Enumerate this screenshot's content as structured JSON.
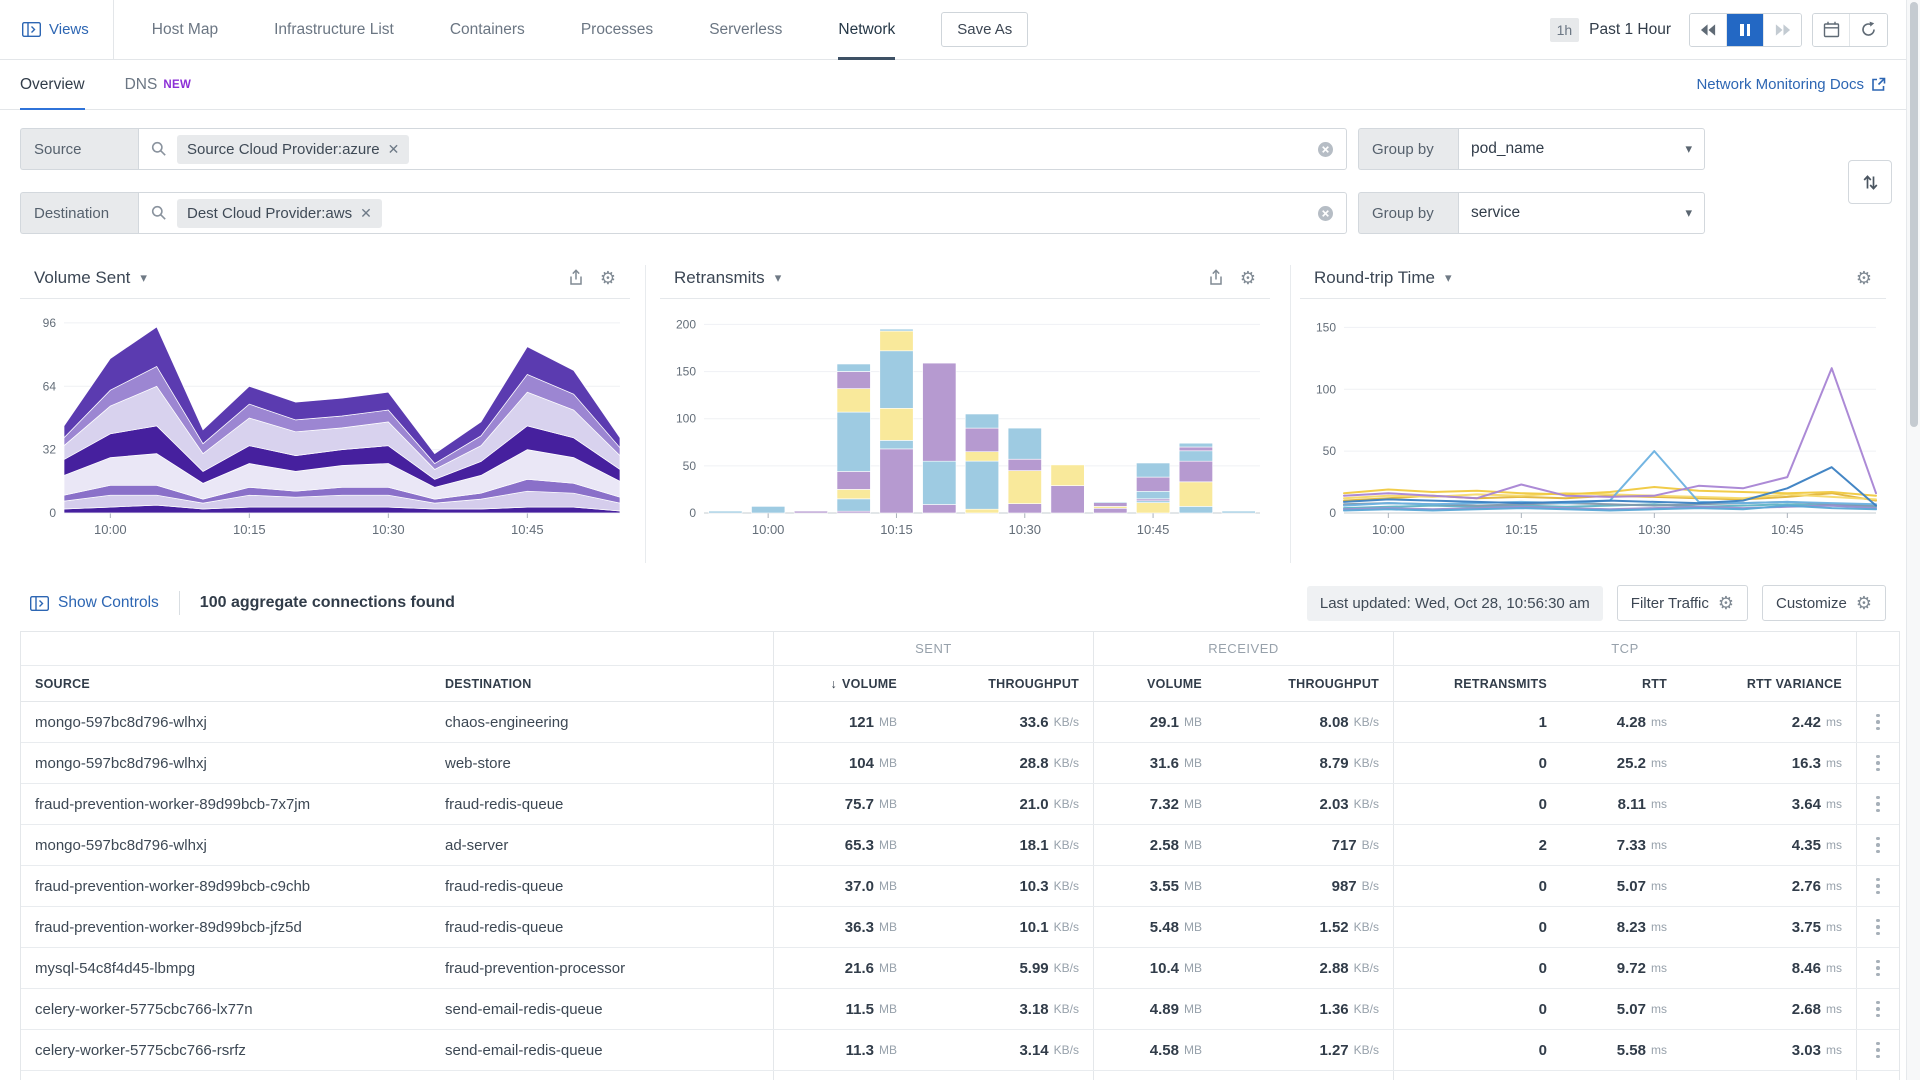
{
  "topnav": {
    "views_label": "Views",
    "items": [
      "Host Map",
      "Infrastructure List",
      "Containers",
      "Processes",
      "Serverless"
    ],
    "active_item": "Network",
    "save_as_label": "Save As",
    "time_range_badge": "1h",
    "time_range_label": "Past 1 Hour"
  },
  "tabs": {
    "overview": "Overview",
    "dns": "DNS",
    "dns_badge": "NEW",
    "docs_link": "Network Monitoring Docs"
  },
  "filters": {
    "source": {
      "label": "Source",
      "pill": "Source Cloud Provider:azure",
      "group_by_label": "Group by",
      "group_by_value": "pod_name"
    },
    "destination": {
      "label": "Destination",
      "pill": "Dest Cloud Provider:aws",
      "group_by_label": "Group by",
      "group_by_value": "service"
    }
  },
  "controls": {
    "show_controls": "Show Controls",
    "connections_found": "100 aggregate connections found",
    "last_updated": "Last updated: Wed, Oct 28, 10:56:30 am",
    "filter_traffic": "Filter Traffic",
    "customize": "Customize"
  },
  "chart_data": [
    {
      "type": "area",
      "title": "Volume Sent",
      "x": [
        "09:57",
        "10:00",
        "10:05",
        "10:10",
        "10:15",
        "10:20",
        "10:25",
        "10:30",
        "10:35",
        "10:40",
        "10:45",
        "10:50",
        "10:55"
      ],
      "x_ticks": [
        {
          "index": 1,
          "label": "10:00"
        },
        {
          "index": 4,
          "label": "10:15"
        },
        {
          "index": 7,
          "label": "10:30"
        },
        {
          "index": 10,
          "label": "10:45"
        }
      ],
      "ylim": [
        0,
        100
      ],
      "yticks": [
        0,
        32,
        64,
        96
      ],
      "stacked": true,
      "series": [
        {
          "name": "series-1",
          "color": "#46209e",
          "values": [
            2,
            3,
            4,
            2,
            3,
            3,
            3,
            3,
            2,
            2,
            3,
            3,
            1
          ]
        },
        {
          "name": "series-2",
          "color": "#d5cdec",
          "values": [
            4,
            6,
            5,
            3,
            6,
            5,
            6,
            6,
            3,
            5,
            8,
            7,
            4
          ]
        },
        {
          "name": "series-3",
          "color": "#8a70c9",
          "values": [
            3,
            5,
            5,
            2,
            4,
            3,
            4,
            4,
            2,
            3,
            6,
            5,
            3
          ]
        },
        {
          "name": "series-4",
          "color": "#eae7f6",
          "values": [
            10,
            14,
            16,
            8,
            12,
            10,
            11,
            12,
            6,
            9,
            15,
            13,
            8
          ]
        },
        {
          "name": "series-5",
          "color": "#46209e",
          "values": [
            8,
            12,
            14,
            6,
            9,
            8,
            8,
            9,
            4,
            7,
            12,
            10,
            6
          ]
        },
        {
          "name": "series-6",
          "color": "#d8d2ee",
          "values": [
            7,
            14,
            20,
            9,
            14,
            12,
            11,
            12,
            5,
            8,
            17,
            14,
            7
          ]
        },
        {
          "name": "series-7",
          "color": "#9c86d2",
          "values": [
            4,
            8,
            10,
            5,
            7,
            6,
            6,
            6,
            3,
            5,
            9,
            8,
            4
          ]
        },
        {
          "name": "series-8",
          "color": "#5b3bb0",
          "values": [
            6,
            16,
            20,
            7,
            9,
            9,
            9,
            9,
            5,
            7,
            14,
            12,
            5
          ]
        }
      ]
    },
    {
      "type": "bar",
      "title": "Retransmits",
      "x": [
        "09:57",
        "10:00",
        "10:05",
        "10:10",
        "10:15",
        "10:20",
        "10:25",
        "10:30",
        "10:35",
        "10:40",
        "10:45",
        "10:50",
        "10:55"
      ],
      "x_ticks": [
        {
          "index": 1,
          "label": "10:00"
        },
        {
          "index": 4,
          "label": "10:15"
        },
        {
          "index": 7,
          "label": "10:30"
        },
        {
          "index": 10,
          "label": "10:45"
        }
      ],
      "ylim": [
        0,
        210
      ],
      "yticks": [
        0,
        50,
        100,
        150,
        200
      ],
      "stacked": true,
      "colors": {
        "blue": "#9ecbe2",
        "yellow": "#f9e99b",
        "purple": "#b69ad0"
      },
      "bars": [
        [
          [
            "blue",
            2
          ]
        ],
        [
          [
            "blue",
            7
          ]
        ],
        [
          [
            "purple",
            2
          ]
        ],
        [
          [
            "purple",
            2
          ],
          [
            "blue",
            13
          ],
          [
            "yellow",
            10
          ],
          [
            "purple",
            19
          ],
          [
            "blue",
            63
          ],
          [
            "yellow",
            25
          ],
          [
            "purple",
            18
          ],
          [
            "blue",
            8
          ]
        ],
        [
          [
            "purple",
            68
          ],
          [
            "blue",
            9
          ],
          [
            "yellow",
            34
          ],
          [
            "blue",
            61
          ],
          [
            "yellow",
            21
          ],
          [
            "blue",
            2
          ]
        ],
        [
          [
            "purple",
            9
          ],
          [
            "blue",
            46
          ],
          [
            "purple",
            104
          ]
        ],
        [
          [
            "yellow",
            4
          ],
          [
            "blue",
            51
          ],
          [
            "yellow",
            10
          ],
          [
            "purple",
            25
          ],
          [
            "blue",
            15
          ]
        ],
        [
          [
            "purple",
            10
          ],
          [
            "yellow",
            35
          ],
          [
            "purple",
            12
          ],
          [
            "blue",
            33
          ]
        ],
        [
          [
            "purple",
            29
          ],
          [
            "yellow",
            22
          ]
        ],
        [
          [
            "purple",
            5
          ],
          [
            "yellow",
            2
          ],
          [
            "purple",
            4
          ],
          [
            "blue",
            1
          ]
        ],
        [
          [
            "yellow",
            11
          ],
          [
            "blue",
            2
          ],
          [
            "purple",
            2
          ],
          [
            "blue",
            8
          ],
          [
            "purple",
            15
          ],
          [
            "blue",
            15
          ]
        ],
        [
          [
            "blue",
            7
          ],
          [
            "yellow",
            26
          ],
          [
            "purple",
            22
          ],
          [
            "blue",
            11
          ],
          [
            "purple",
            4
          ],
          [
            "blue",
            4
          ]
        ],
        [
          [
            "blue",
            2
          ]
        ]
      ]
    },
    {
      "type": "line",
      "title": "Round-trip Time",
      "x": [
        "09:57",
        "10:00",
        "10:05",
        "10:10",
        "10:15",
        "10:20",
        "10:25",
        "10:30",
        "10:35",
        "10:40",
        "10:45",
        "10:50",
        "10:55"
      ],
      "x_ticks": [
        {
          "index": 1,
          "label": "10:00"
        },
        {
          "index": 4,
          "label": "10:15"
        },
        {
          "index": 7,
          "label": "10:30"
        },
        {
          "index": 10,
          "label": "10:45"
        }
      ],
      "ylim": [
        0,
        160
      ],
      "yticks": [
        0,
        50,
        100,
        150
      ],
      "series": [
        {
          "name": "line-teal",
          "color": "#5fb3c4",
          "values": [
            4,
            5,
            6,
            5,
            6,
            5,
            6,
            7,
            5,
            6,
            7,
            6,
            5
          ]
        },
        {
          "name": "line-slate",
          "color": "#8198ad",
          "values": [
            7,
            8,
            7,
            6,
            7,
            8,
            7,
            6,
            7,
            8,
            9,
            7,
            6
          ]
        },
        {
          "name": "line-violet",
          "color": "#9b8ed0",
          "values": [
            3,
            4,
            3,
            4,
            5,
            4,
            3,
            4,
            5,
            4,
            5,
            6,
            4
          ]
        },
        {
          "name": "line-blue-2",
          "color": "#58a6d6",
          "values": [
            2,
            3,
            2,
            3,
            4,
            3,
            2,
            3,
            4,
            3,
            6,
            4,
            3
          ]
        },
        {
          "name": "line-gold",
          "color": "#e0b43a",
          "values": [
            10,
            12,
            14,
            12,
            13,
            12,
            14,
            13,
            12,
            11,
            13,
            16,
            10
          ]
        },
        {
          "name": "line-yellow-2",
          "color": "#f5d96a",
          "values": [
            12,
            14,
            13,
            15,
            14,
            16,
            15,
            14,
            13,
            12,
            15,
            13,
            11
          ]
        },
        {
          "name": "line-yellow",
          "color": "#f0c93f",
          "values": [
            16,
            19,
            17,
            18,
            16,
            15,
            17,
            21,
            18,
            17,
            16,
            17,
            14
          ]
        },
        {
          "name": "line-light-blue",
          "color": "#6cb1e0",
          "values": [
            6,
            8,
            7,
            8,
            9,
            8,
            10,
            50,
            9,
            8,
            9,
            8,
            7
          ]
        },
        {
          "name": "line-dark-blue",
          "color": "#3a7fc2",
          "values": [
            9,
            11,
            10,
            9,
            8,
            9,
            10,
            9,
            8,
            10,
            20,
            37,
            6
          ]
        },
        {
          "name": "line-purple",
          "color": "#a884d4",
          "values": [
            14,
            16,
            14,
            12,
            23,
            14,
            13,
            14,
            22,
            20,
            29,
            117,
            16
          ]
        }
      ]
    }
  ],
  "table": {
    "groups": {
      "sent": "SENT",
      "received": "RECEIVED",
      "tcp": "TCP"
    },
    "sort_arrow": "↓",
    "columns": [
      "SOURCE",
      "DESTINATION",
      "VOLUME",
      "THROUGHPUT",
      "VOLUME",
      "THROUGHPUT",
      "RETRANSMITS",
      "RTT",
      "RTT VARIANCE"
    ],
    "rows": [
      {
        "source": "mongo-597bc8d796-wlhxj",
        "destination": "chaos-engineering",
        "sent_volume": {
          "v": "121",
          "u": "MB"
        },
        "sent_throughput": {
          "v": "33.6",
          "u": "KB/s"
        },
        "recv_volume": {
          "v": "29.1",
          "u": "MB"
        },
        "recv_throughput": {
          "v": "8.08",
          "u": "KB/s"
        },
        "retransmits": {
          "v": "1",
          "u": ""
        },
        "rtt": {
          "v": "4.28",
          "u": "ms"
        },
        "rtt_variance": {
          "v": "2.42",
          "u": "ms"
        }
      },
      {
        "source": "mongo-597bc8d796-wlhxj",
        "destination": "web-store",
        "sent_volume": {
          "v": "104",
          "u": "MB"
        },
        "sent_throughput": {
          "v": "28.8",
          "u": "KB/s"
        },
        "recv_volume": {
          "v": "31.6",
          "u": "MB"
        },
        "recv_throughput": {
          "v": "8.79",
          "u": "KB/s"
        },
        "retransmits": {
          "v": "0",
          "u": ""
        },
        "rtt": {
          "v": "25.2",
          "u": "ms"
        },
        "rtt_variance": {
          "v": "16.3",
          "u": "ms"
        }
      },
      {
        "source": "fraud-prevention-worker-89d99bcb-7x7jm",
        "destination": "fraud-redis-queue",
        "sent_volume": {
          "v": "75.7",
          "u": "MB"
        },
        "sent_throughput": {
          "v": "21.0",
          "u": "KB/s"
        },
        "recv_volume": {
          "v": "7.32",
          "u": "MB"
        },
        "recv_throughput": {
          "v": "2.03",
          "u": "KB/s"
        },
        "retransmits": {
          "v": "0",
          "u": ""
        },
        "rtt": {
          "v": "8.11",
          "u": "ms"
        },
        "rtt_variance": {
          "v": "3.64",
          "u": "ms"
        }
      },
      {
        "source": "mongo-597bc8d796-wlhxj",
        "destination": "ad-server",
        "sent_volume": {
          "v": "65.3",
          "u": "MB"
        },
        "sent_throughput": {
          "v": "18.1",
          "u": "KB/s"
        },
        "recv_volume": {
          "v": "2.58",
          "u": "MB"
        },
        "recv_throughput": {
          "v": "717",
          "u": "B/s"
        },
        "retransmits": {
          "v": "2",
          "u": ""
        },
        "rtt": {
          "v": "7.33",
          "u": "ms"
        },
        "rtt_variance": {
          "v": "4.35",
          "u": "ms"
        }
      },
      {
        "source": "fraud-prevention-worker-89d99bcb-c9chb",
        "destination": "fraud-redis-queue",
        "sent_volume": {
          "v": "37.0",
          "u": "MB"
        },
        "sent_throughput": {
          "v": "10.3",
          "u": "KB/s"
        },
        "recv_volume": {
          "v": "3.55",
          "u": "MB"
        },
        "recv_throughput": {
          "v": "987",
          "u": "B/s"
        },
        "retransmits": {
          "v": "0",
          "u": ""
        },
        "rtt": {
          "v": "5.07",
          "u": "ms"
        },
        "rtt_variance": {
          "v": "2.76",
          "u": "ms"
        }
      },
      {
        "source": "fraud-prevention-worker-89d99bcb-jfz5d",
        "destination": "fraud-redis-queue",
        "sent_volume": {
          "v": "36.3",
          "u": "MB"
        },
        "sent_throughput": {
          "v": "10.1",
          "u": "KB/s"
        },
        "recv_volume": {
          "v": "5.48",
          "u": "MB"
        },
        "recv_throughput": {
          "v": "1.52",
          "u": "KB/s"
        },
        "retransmits": {
          "v": "0",
          "u": ""
        },
        "rtt": {
          "v": "8.23",
          "u": "ms"
        },
        "rtt_variance": {
          "v": "3.75",
          "u": "ms"
        }
      },
      {
        "source": "mysql-54c8f4d45-lbmpg",
        "destination": "fraud-prevention-processor",
        "sent_volume": {
          "v": "21.6",
          "u": "MB"
        },
        "sent_throughput": {
          "v": "5.99",
          "u": "KB/s"
        },
        "recv_volume": {
          "v": "10.4",
          "u": "MB"
        },
        "recv_throughput": {
          "v": "2.88",
          "u": "KB/s"
        },
        "retransmits": {
          "v": "0",
          "u": ""
        },
        "rtt": {
          "v": "9.72",
          "u": "ms"
        },
        "rtt_variance": {
          "v": "8.46",
          "u": "ms"
        }
      },
      {
        "source": "celery-worker-5775cbc766-lx77n",
        "destination": "send-email-redis-queue",
        "sent_volume": {
          "v": "11.5",
          "u": "MB"
        },
        "sent_throughput": {
          "v": "3.18",
          "u": "KB/s"
        },
        "recv_volume": {
          "v": "4.89",
          "u": "MB"
        },
        "recv_throughput": {
          "v": "1.36",
          "u": "KB/s"
        },
        "retransmits": {
          "v": "0",
          "u": ""
        },
        "rtt": {
          "v": "5.07",
          "u": "ms"
        },
        "rtt_variance": {
          "v": "2.68",
          "u": "ms"
        }
      },
      {
        "source": "celery-worker-5775cbc766-rsrfz",
        "destination": "send-email-redis-queue",
        "sent_volume": {
          "v": "11.3",
          "u": "MB"
        },
        "sent_throughput": {
          "v": "3.14",
          "u": "KB/s"
        },
        "recv_volume": {
          "v": "4.58",
          "u": "MB"
        },
        "recv_throughput": {
          "v": "1.27",
          "u": "KB/s"
        },
        "retransmits": {
          "v": "0",
          "u": ""
        },
        "rtt": {
          "v": "5.58",
          "u": "ms"
        },
        "rtt_variance": {
          "v": "3.03",
          "u": "ms"
        }
      }
    ]
  }
}
